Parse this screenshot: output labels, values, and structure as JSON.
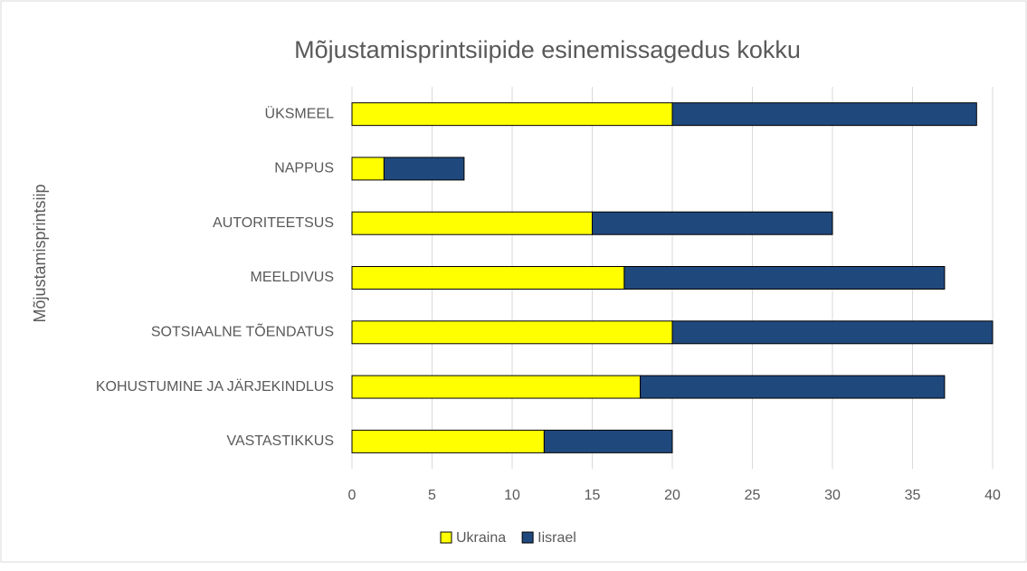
{
  "chart_data": {
    "type": "bar",
    "orientation": "horizontal",
    "stacked": true,
    "title": "Mõjustamisprintsiipide esinemissagedus kokku",
    "y_label": "Mõjustamisprintsiip",
    "categories": [
      "ÜKSMEEL",
      "NAPPUS",
      "AUTORITEETSUS",
      "MEELDIVUS",
      "SOTSIAALNE TÕENDATUS",
      "KOHUSTUMINE JA JÄRJEKINDLUS",
      "VASTASTIKKUS"
    ],
    "series": [
      {
        "name": "Ukraina",
        "color": "#ffff00",
        "values": [
          20,
          2,
          15,
          17,
          20,
          18,
          12
        ]
      },
      {
        "name": "Iisrael",
        "color": "#1f497d",
        "values": [
          19,
          5,
          15,
          20,
          20,
          19,
          8
        ]
      }
    ],
    "xlim": [
      0,
      40
    ],
    "xticks": [
      0,
      5,
      10,
      15,
      20,
      25,
      30,
      35,
      40
    ],
    "grid": true,
    "legend": "bottom"
  }
}
